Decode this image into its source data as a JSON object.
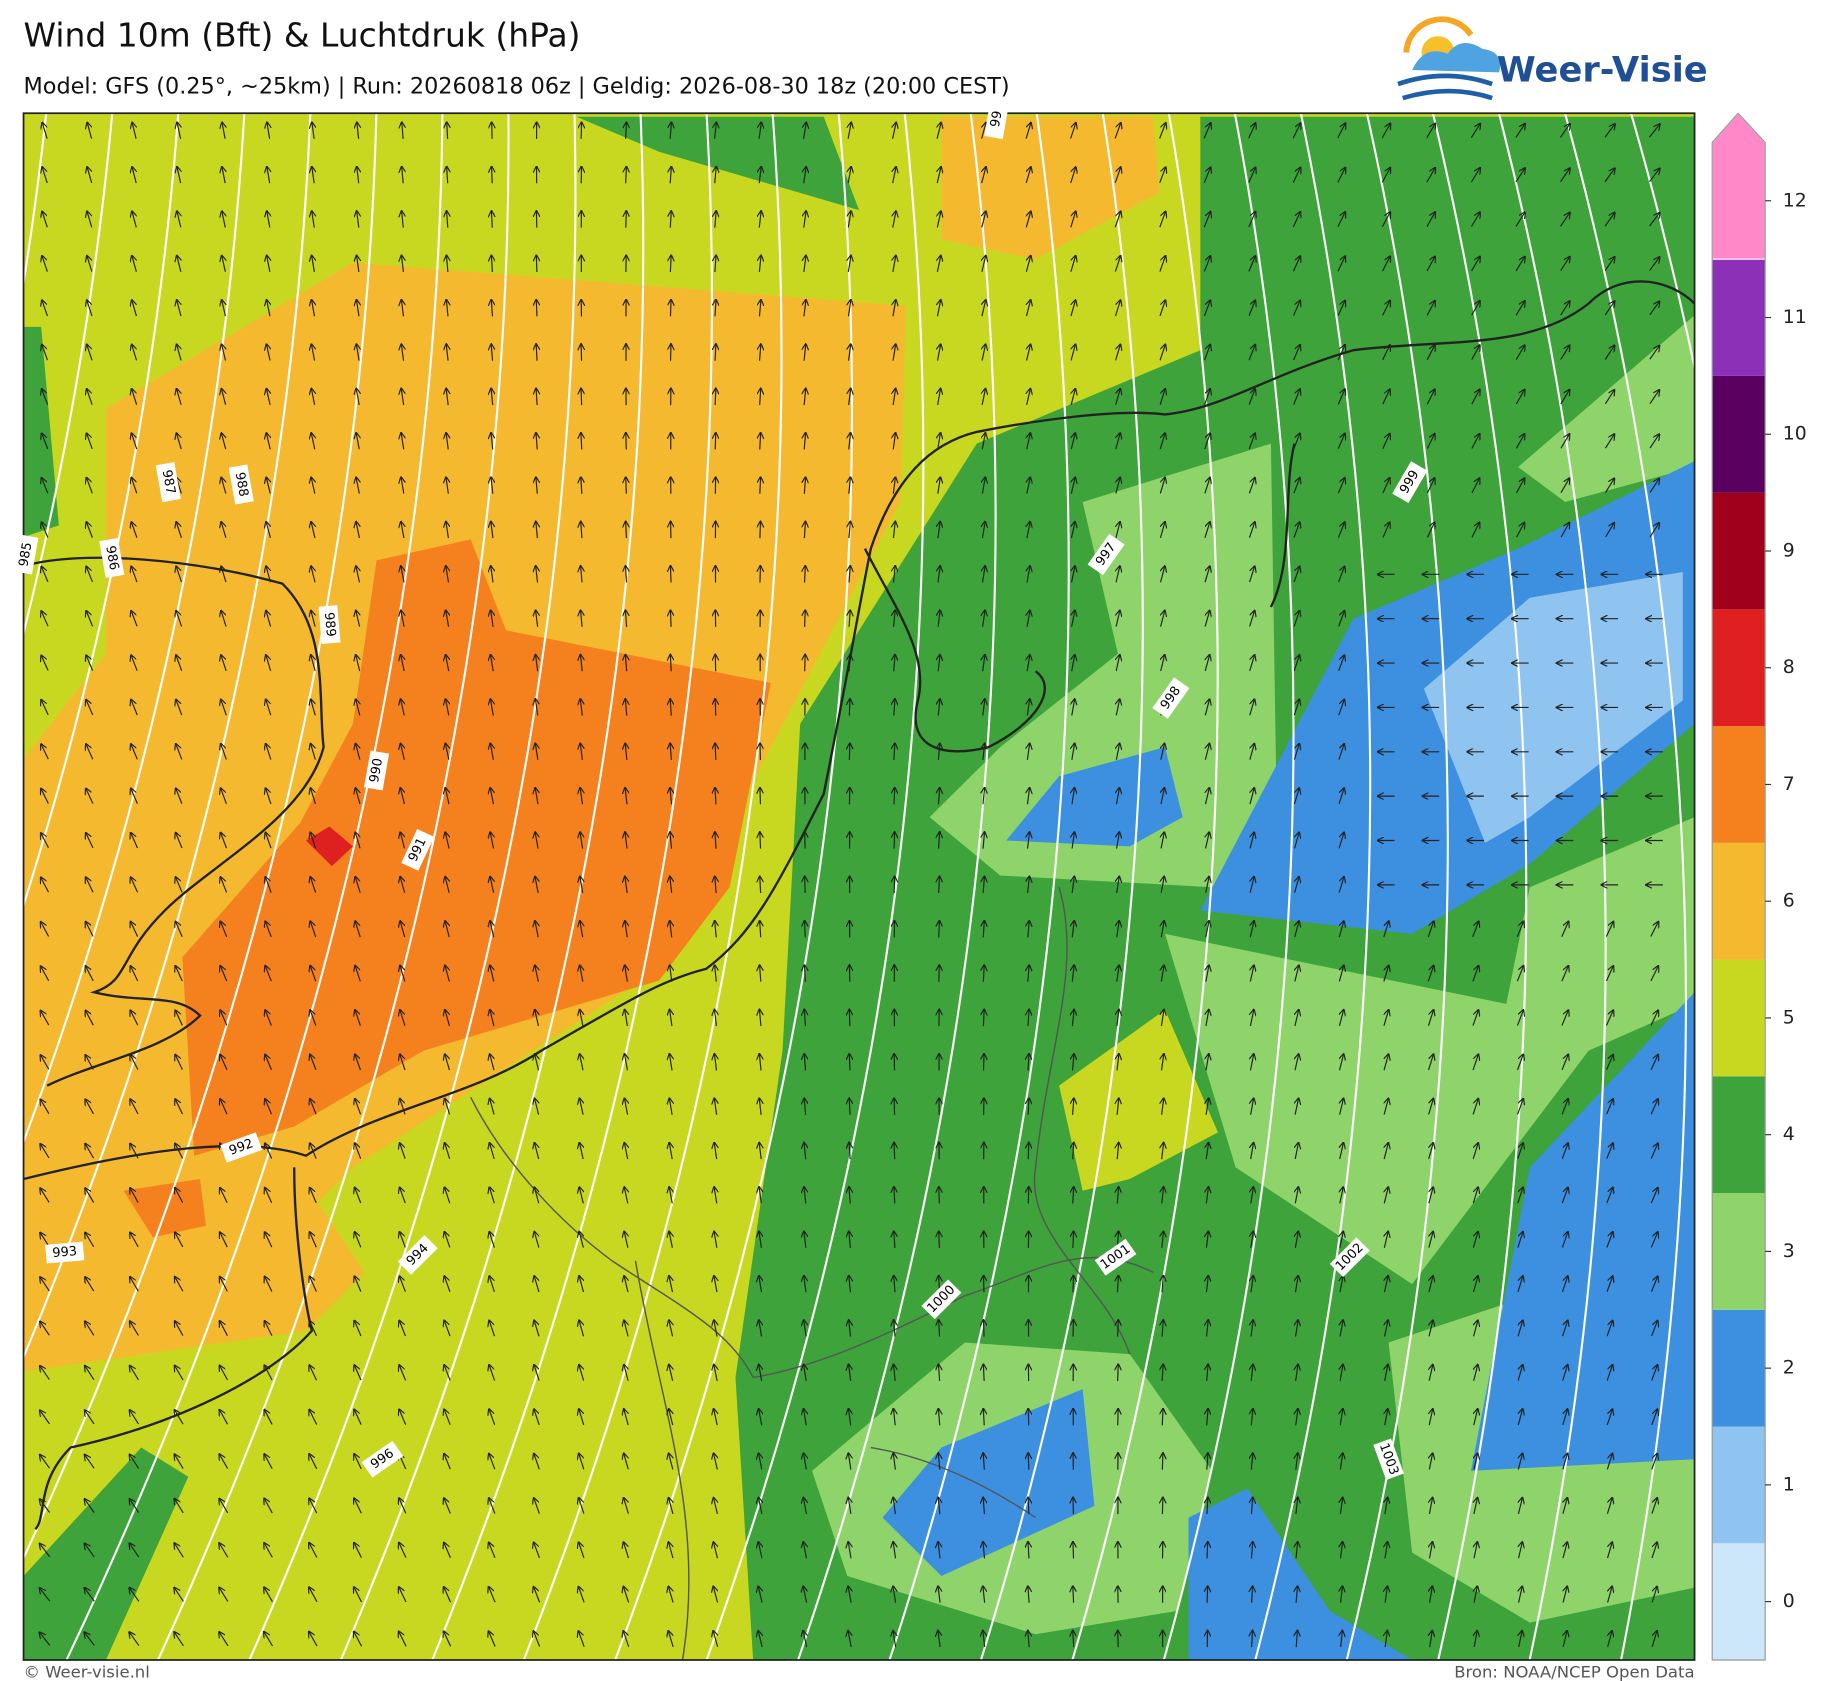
{
  "header": {
    "title": "Wind 10m (Bft) & Luchtdruk (hPa)",
    "subtitle": "Model: GFS (0.25°, ~25km)  |  Run: 20260818 06z  |  Geldig: 2026-08-30 18z (20:00 CEST)"
  },
  "logo": {
    "text": "Weer-Visie"
  },
  "colorbar": {
    "ticks": [
      0,
      1,
      2,
      3,
      4,
      5,
      6,
      7,
      8,
      9,
      10,
      11,
      12
    ],
    "colors": [
      "#cce6fa",
      "#8fc4f0",
      "#3d8fdf",
      "#8ed46a",
      "#3da33a",
      "#c8d820",
      "#f5b930",
      "#f5801e",
      "#de2020",
      "#a0001a",
      "#5a0060",
      "#8c30b8",
      "#ff88c8"
    ]
  },
  "isobar_labels": [
    985,
    986,
    987,
    988,
    989,
    990,
    991,
    992,
    993,
    994,
    996,
    997,
    998,
    999,
    1000,
    1001,
    1002,
    1003,
    99
  ],
  "footer": {
    "left": "© Weer-visie.nl",
    "right": "Bron: NOAA/NCEP Open Data"
  }
}
